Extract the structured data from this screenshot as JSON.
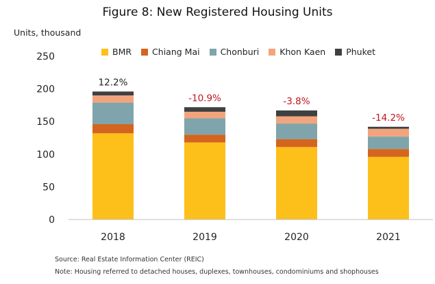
{
  "chart_data": {
    "type": "bar",
    "stacked": true,
    "title": "Figure 8: New Registered Housing Units",
    "ylabel": "Units, thousand",
    "xlabel": "",
    "categories": [
      "2018",
      "2019",
      "2020",
      "2021"
    ],
    "ylim": [
      0,
      250
    ],
    "yticks": [
      0,
      50,
      100,
      150,
      200,
      250
    ],
    "grid": false,
    "legend_position": "top",
    "series": [
      {
        "name": "BMR",
        "color": "#FDBF1A",
        "values": [
          132,
          118,
          111,
          96
        ]
      },
      {
        "name": "Chiang Mai",
        "color": "#D4651E",
        "values": [
          14,
          12,
          12,
          12
        ]
      },
      {
        "name": "Chonburi",
        "color": "#7FA4AB",
        "values": [
          33,
          25,
          24,
          19
        ]
      },
      {
        "name": "Khon Kaen",
        "color": "#F2A57C",
        "values": [
          11,
          10,
          11,
          12
        ]
      },
      {
        "name": "Phuket",
        "color": "#404040",
        "values": [
          6,
          7,
          9,
          3
        ]
      }
    ],
    "annotations": [
      {
        "category": "2018",
        "text": "12.2%",
        "color": "#222222"
      },
      {
        "category": "2019",
        "text": "-10.9%",
        "color": "#C0141C"
      },
      {
        "category": "2020",
        "text": "-3.8%",
        "color": "#C0141C"
      },
      {
        "category": "2021",
        "text": "-14.2%",
        "color": "#C0141C"
      }
    ]
  },
  "footer": {
    "source": "Source: Real Estate Information Center (REIC)",
    "note": "Note: Housing referred to detached houses, duplexes, townhouses, condominiums and shophouses"
  }
}
